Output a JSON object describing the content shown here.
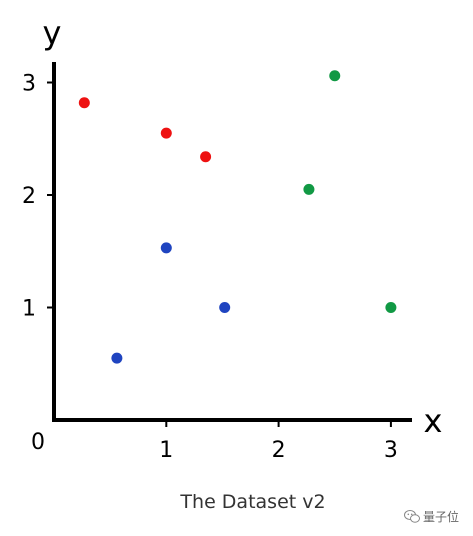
{
  "chart_data": {
    "type": "scatter",
    "title": "The Dataset v2",
    "xlabel": "x",
    "ylabel": "y",
    "origin_label": "0",
    "xlim": [
      0,
      3.2
    ],
    "ylim": [
      0,
      3.2
    ],
    "xticks": [
      {
        "value": 1,
        "label": "1"
      },
      {
        "value": 2,
        "label": "2"
      },
      {
        "value": 3,
        "label": "3"
      }
    ],
    "yticks": [
      {
        "value": 1,
        "label": "1"
      },
      {
        "value": 2,
        "label": "2"
      },
      {
        "value": 3,
        "label": "3"
      }
    ],
    "grid": false,
    "legend": "none",
    "series": [
      {
        "color": "#ee1111",
        "points": [
          {
            "x": 0.27,
            "y": 2.82
          },
          {
            "x": 1.0,
            "y": 2.55
          },
          {
            "x": 1.35,
            "y": 2.34
          }
        ]
      },
      {
        "color": "#1f44c0",
        "points": [
          {
            "x": 0.56,
            "y": 0.55
          },
          {
            "x": 1.0,
            "y": 1.53
          },
          {
            "x": 1.52,
            "y": 1.0
          }
        ]
      },
      {
        "color": "#119944",
        "points": [
          {
            "x": 2.27,
            "y": 2.05
          },
          {
            "x": 2.5,
            "y": 3.06
          },
          {
            "x": 3.0,
            "y": 1.0
          }
        ]
      }
    ]
  },
  "watermark": {
    "text": "量子位",
    "icon": "wechat-icon"
  }
}
